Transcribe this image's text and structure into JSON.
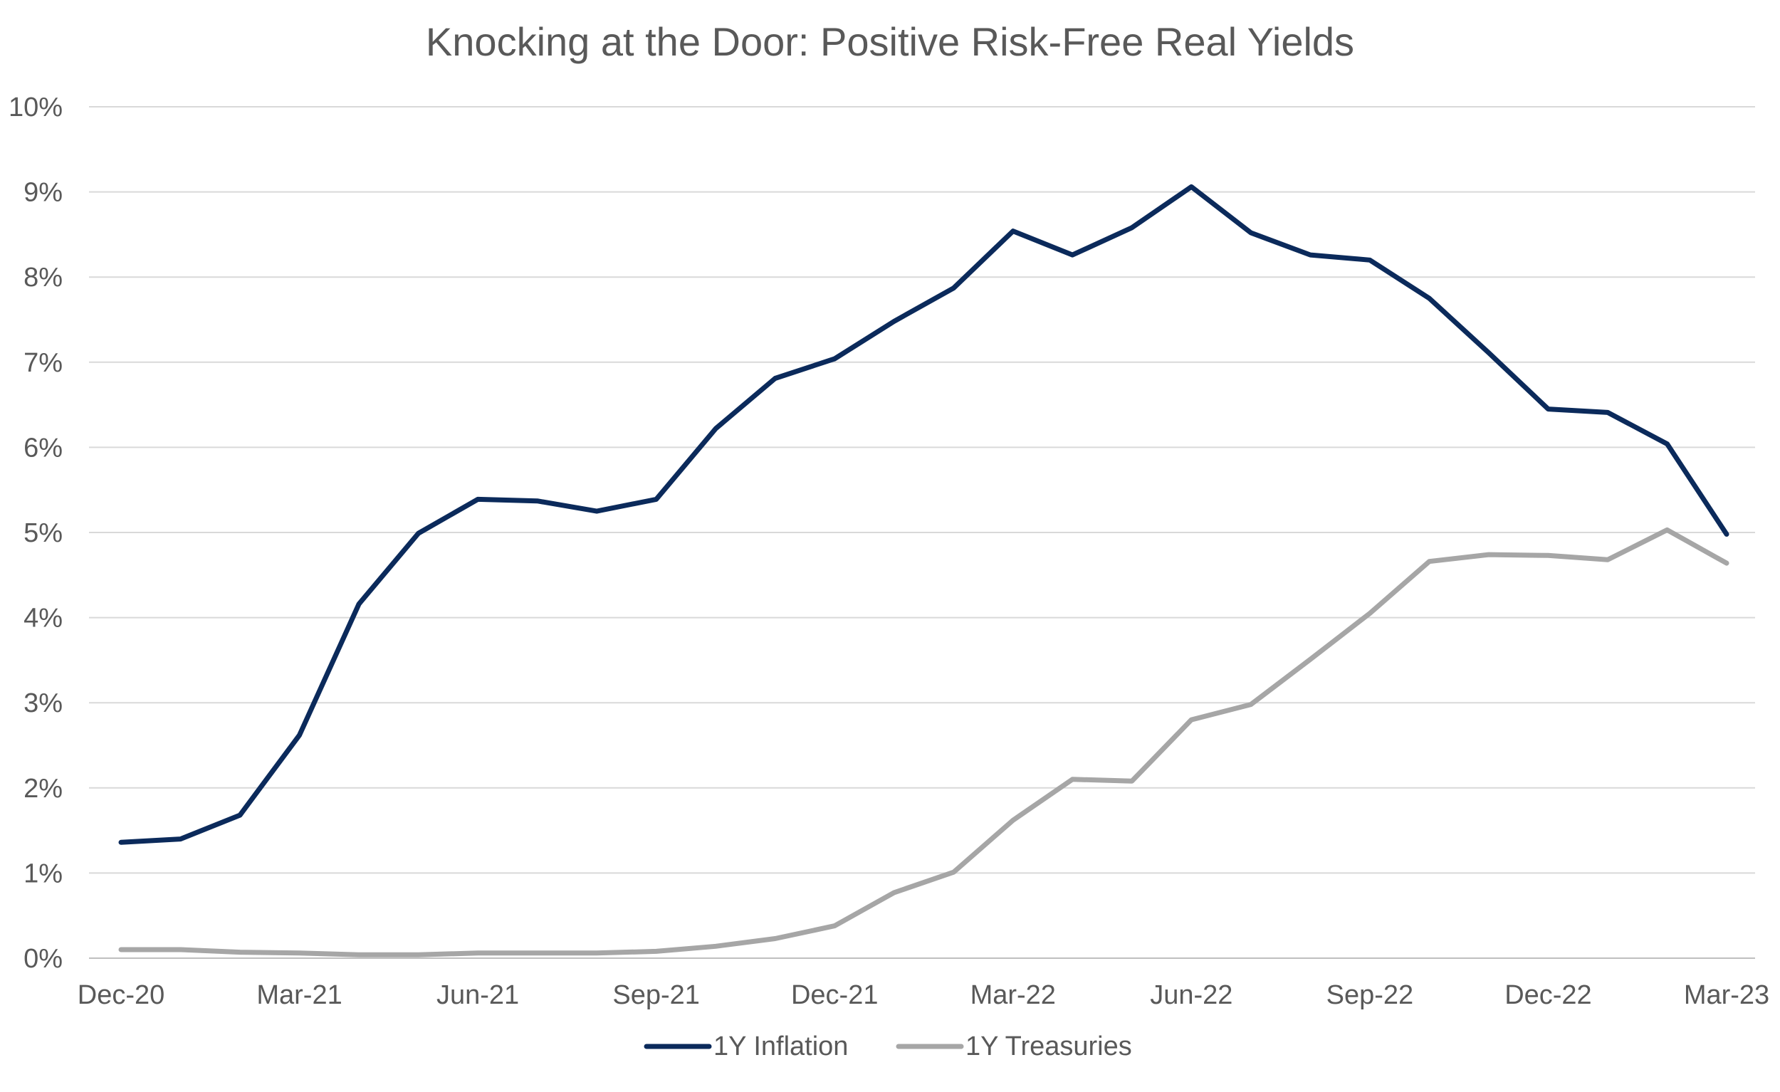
{
  "chart_data": {
    "type": "line",
    "title": "Knocking at the Door: Positive Risk-Free Real Yields",
    "xlabel": "",
    "ylabel": "",
    "ylim": [
      0,
      10
    ],
    "y_ticks": [
      "0%",
      "1%",
      "2%",
      "3%",
      "4%",
      "5%",
      "6%",
      "7%",
      "8%",
      "9%",
      "10%"
    ],
    "x": [
      "Dec-20",
      "Jan-21",
      "Feb-21",
      "Mar-21",
      "Apr-21",
      "May-21",
      "Jun-21",
      "Jul-21",
      "Aug-21",
      "Sep-21",
      "Oct-21",
      "Nov-21",
      "Dec-21",
      "Jan-22",
      "Feb-22",
      "Mar-22",
      "Apr-22",
      "May-22",
      "Jun-22",
      "Jul-22",
      "Aug-22",
      "Sep-22",
      "Oct-22",
      "Nov-22",
      "Dec-22",
      "Jan-23",
      "Feb-23",
      "Mar-23"
    ],
    "x_tick_labels": [
      "Dec-20",
      "Mar-21",
      "Jun-21",
      "Sep-21",
      "Dec-21",
      "Mar-22",
      "Jun-22",
      "Sep-22",
      "Dec-22",
      "Mar-23"
    ],
    "x_tick_every": 3,
    "grid": true,
    "legend_position": "bottom",
    "series": [
      {
        "name": "1Y Inflation",
        "color": "#0b2a5b",
        "values": [
          1.36,
          1.4,
          1.68,
          2.62,
          4.16,
          4.99,
          5.39,
          5.37,
          5.25,
          5.39,
          6.22,
          6.81,
          7.04,
          7.48,
          7.87,
          8.54,
          8.26,
          8.58,
          9.06,
          8.52,
          8.26,
          8.2,
          7.75,
          7.11,
          6.45,
          6.41,
          6.04,
          4.98
        ]
      },
      {
        "name": "1Y Treasuries",
        "color": "#a6a6a6",
        "values": [
          0.1,
          0.1,
          0.07,
          0.06,
          0.04,
          0.04,
          0.06,
          0.06,
          0.06,
          0.08,
          0.14,
          0.23,
          0.38,
          0.77,
          1.01,
          1.62,
          2.1,
          2.08,
          2.8,
          2.98,
          3.51,
          4.05,
          4.66,
          4.74,
          4.73,
          4.68,
          5.03,
          4.64
        ]
      }
    ]
  }
}
